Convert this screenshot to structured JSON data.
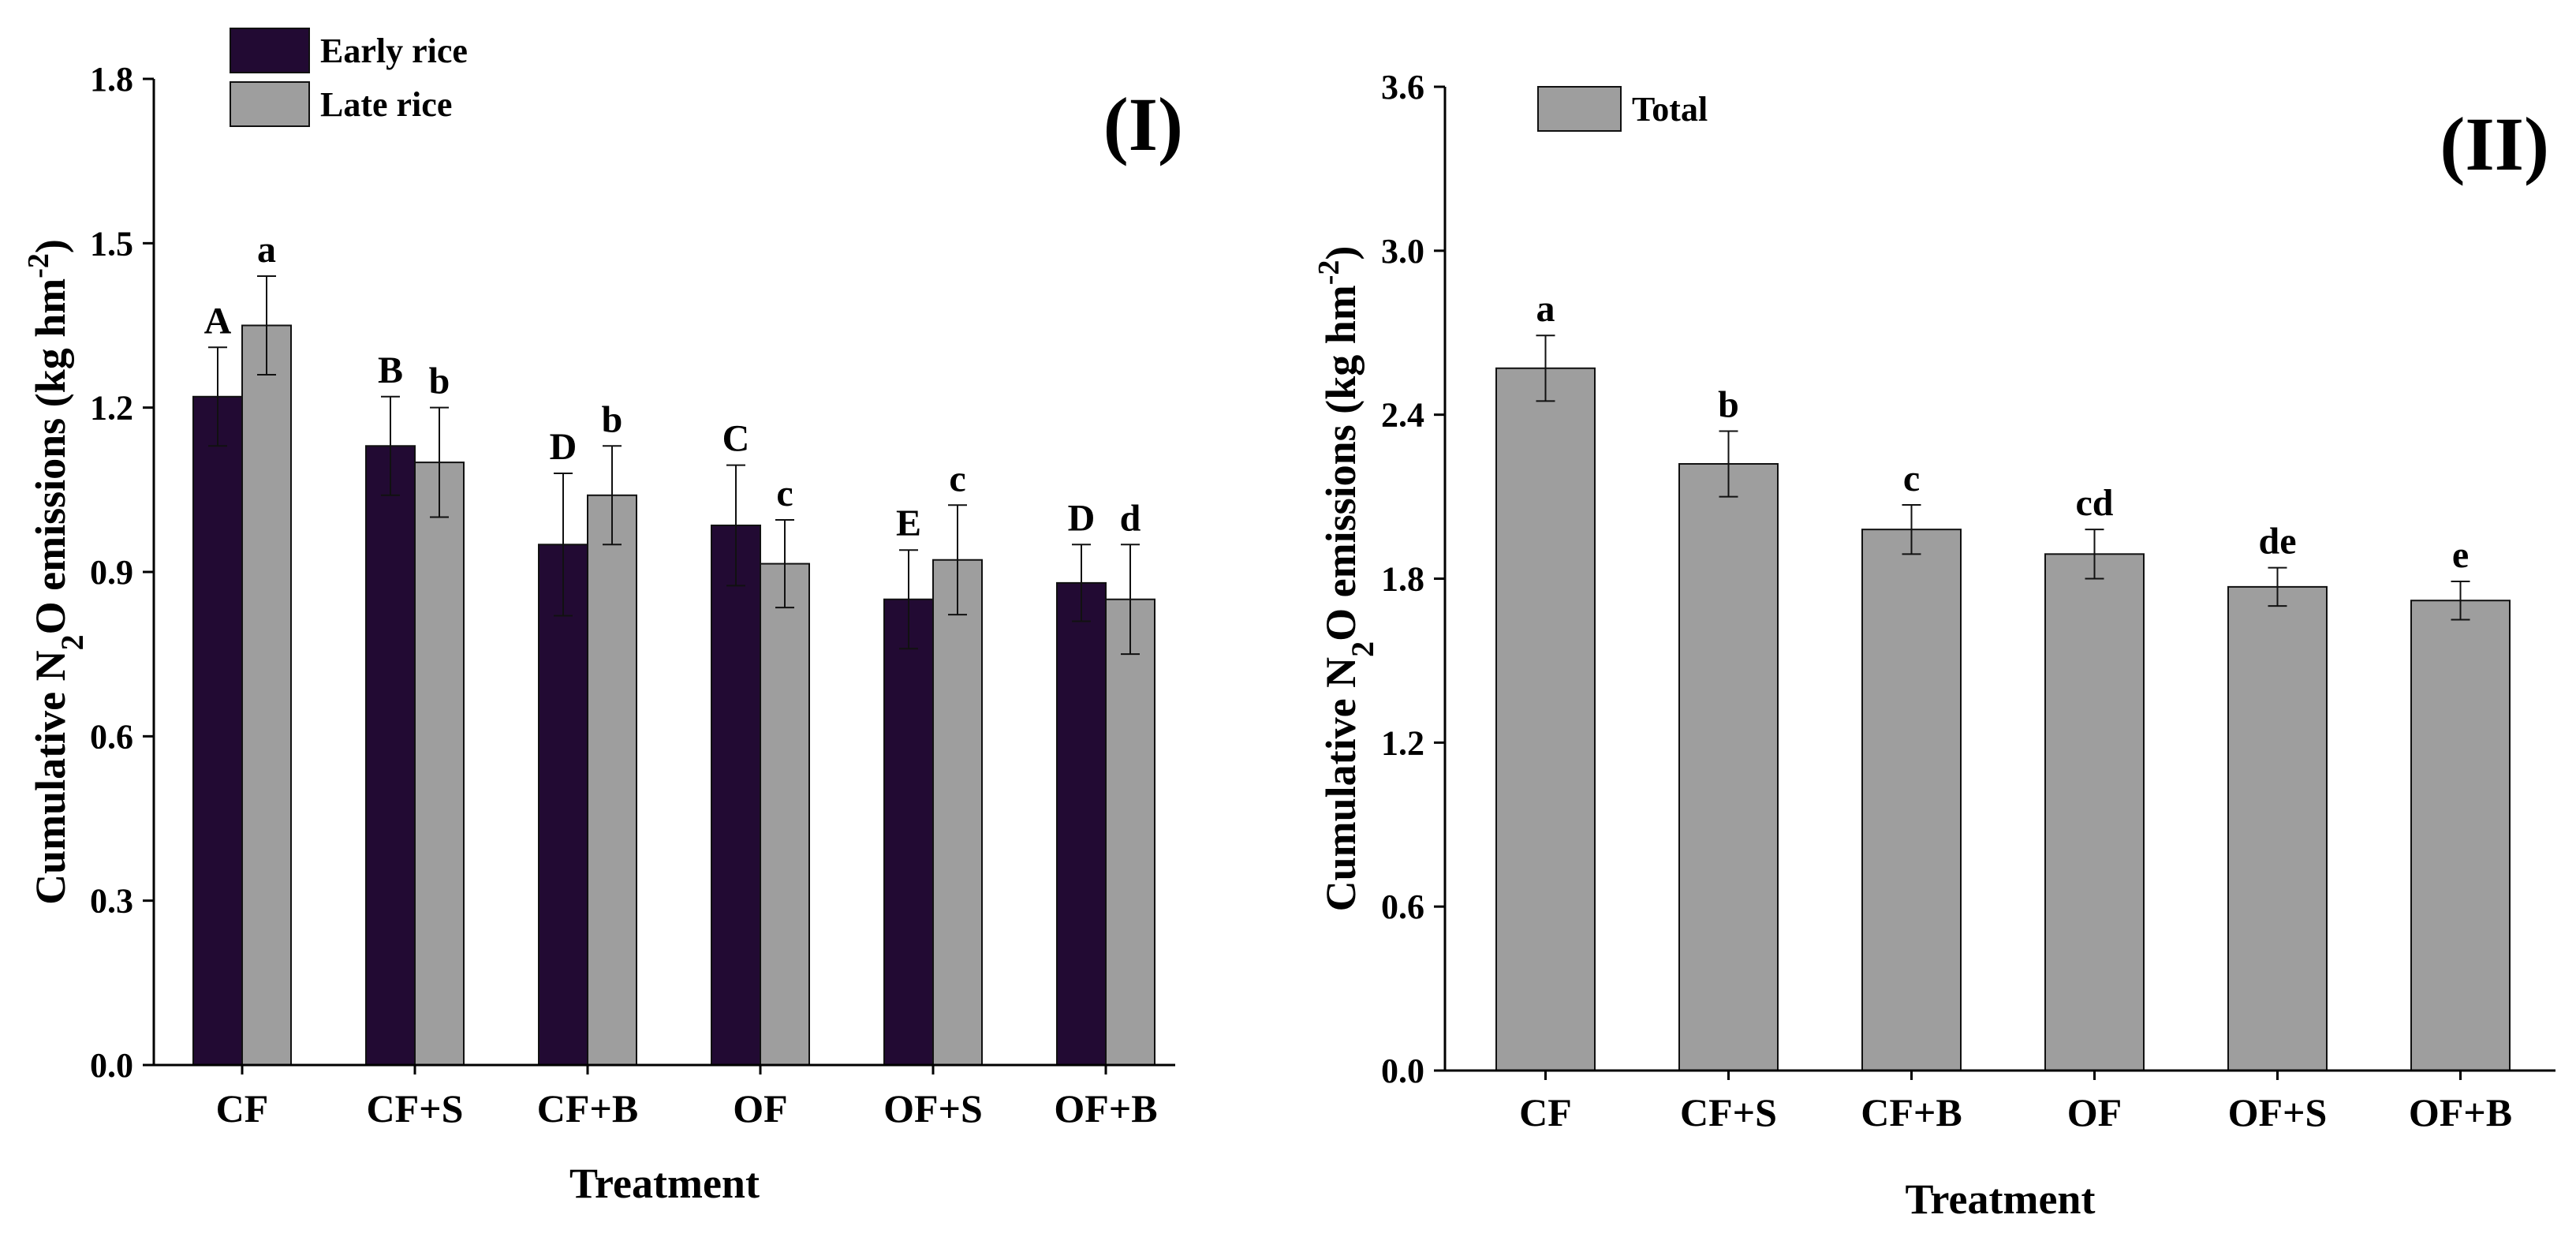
{
  "chart_data": [
    {
      "type": "bar",
      "panel_label": "(I)",
      "categories": [
        "CF",
        "CF+S",
        "CF+B",
        "OF",
        "OF+S",
        "OF+B"
      ],
      "xlabel": "Treatment",
      "ylabel_parts": {
        "a": "Cumulative N",
        "sub": "2",
        "b": "O emissions (kg hm",
        "sup": "-2",
        "c": ")"
      },
      "ylim": [
        0,
        1.8
      ],
      "yticks": [
        "0.0",
        "0.3",
        "0.6",
        "0.9",
        "1.2",
        "1.5",
        "1.8"
      ],
      "legend_position": "top-left",
      "series": [
        {
          "name": "Early rice",
          "color": "#220a33",
          "values": [
            1.22,
            1.13,
            0.95,
            0.985,
            0.85,
            0.88
          ],
          "errors": [
            0.09,
            0.09,
            0.13,
            0.11,
            0.09,
            0.07
          ],
          "letters": [
            "A",
            "B",
            "D",
            "C",
            "E",
            "D"
          ]
        },
        {
          "name": "Late rice",
          "color": "#9e9e9e",
          "values": [
            1.35,
            1.1,
            1.04,
            0.915,
            0.922,
            0.85
          ],
          "errors": [
            0.09,
            0.1,
            0.09,
            0.08,
            0.1,
            0.1
          ],
          "letters": [
            "a",
            "b",
            "b",
            "c",
            "c",
            "d"
          ]
        }
      ]
    },
    {
      "type": "bar",
      "panel_label": "(II)",
      "categories": [
        "CF",
        "CF+S",
        "CF+B",
        "OF",
        "OF+S",
        "OF+B"
      ],
      "xlabel": "Treatment",
      "ylabel_parts": {
        "a": "Cumulative N",
        "sub": "2",
        "b": "O emissions (kg hm",
        "sup": "-2",
        "c": ")"
      },
      "ylim": [
        0,
        3.6
      ],
      "yticks": [
        "0.0",
        "0.6",
        "1.2",
        "1.8",
        "2.4",
        "3.0",
        "3.6"
      ],
      "legend_position": "top-left",
      "series": [
        {
          "name": "Total",
          "color": "#9e9e9e",
          "values": [
            2.57,
            2.22,
            1.98,
            1.89,
            1.77,
            1.72
          ],
          "errors": [
            0.12,
            0.12,
            0.09,
            0.09,
            0.07,
            0.07
          ],
          "letters": [
            "a",
            "b",
            "c",
            "cd",
            "de",
            "e"
          ]
        }
      ]
    }
  ]
}
